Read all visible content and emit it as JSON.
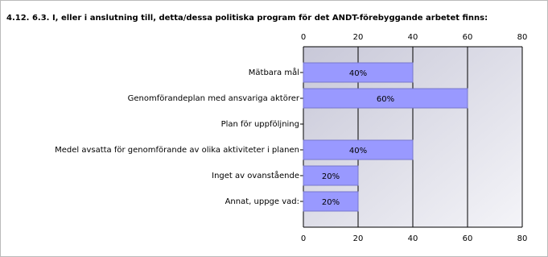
{
  "chart_data": {
    "type": "bar",
    "orientation": "horizontal",
    "title": "4.12. 6.3. I, eller i anslutning till, detta/dessa politiska program för det ANDT-förebyggande arbetet finns:",
    "categories": [
      "Mätbara mål",
      "Genomförandeplan med ansvariga aktörer",
      "Plan för uppföljning",
      "Medel avsatta för genomförande av olika aktiviteter i planen",
      "Inget av ovanstående",
      "Annat, uppge vad:"
    ],
    "values": [
      40,
      60,
      0,
      40,
      20,
      20
    ],
    "value_labels": [
      "40%",
      "60%",
      null,
      "40%",
      "20%",
      "20%"
    ],
    "color": "#9999ff",
    "xlim": [
      0,
      80
    ],
    "xticks": [
      0,
      20,
      40,
      60,
      80
    ],
    "grid": true
  }
}
